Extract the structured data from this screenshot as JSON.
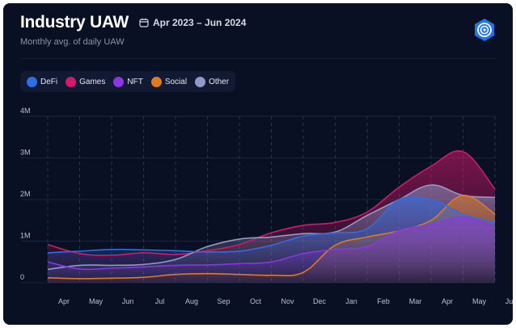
{
  "header": {
    "title": "Industry UAW",
    "date_range": "Apr 2023 – Jun 2024",
    "subtitle": "Monthly avg. of daily UAW"
  },
  "icons": {
    "calendar": "calendar-icon",
    "logo": "dappradar-logo-icon"
  },
  "colors": {
    "background": "#0a1024",
    "DeFi": "#2b6ee8",
    "Games": "#d4186c",
    "NFT": "#8b36e0",
    "Social": "#e07a1e",
    "Other": "#8f9bc6"
  },
  "chart_data": {
    "type": "area",
    "title": "Industry UAW",
    "subtitle": "Monthly avg. of daily UAW",
    "categories": [
      "Apr",
      "May",
      "Jun",
      "Jul",
      "Aug",
      "Sep",
      "Oct",
      "Nov",
      "Dec",
      "Jan",
      "Feb",
      "Mar",
      "Apr",
      "May",
      "Jun"
    ],
    "y_ticks": [
      "0",
      "1M",
      "2M",
      "3M",
      "4M"
    ],
    "ylim": [
      0,
      4000000
    ],
    "grid": true,
    "legend": "top-left",
    "series": [
      {
        "name": "DeFi",
        "values": [
          720000,
          760000,
          800000,
          790000,
          770000,
          740000,
          760000,
          900000,
          1120000,
          1200000,
          1300000,
          2000000,
          2000000,
          1650000,
          1450000
        ]
      },
      {
        "name": "Games",
        "values": [
          920000,
          700000,
          660000,
          720000,
          680000,
          770000,
          920000,
          1200000,
          1380000,
          1450000,
          1700000,
          2300000,
          2800000,
          3150000,
          2250000
        ]
      },
      {
        "name": "NFT",
        "values": [
          500000,
          330000,
          350000,
          380000,
          420000,
          430000,
          460000,
          500000,
          700000,
          800000,
          870000,
          1250000,
          1400000,
          1580000,
          1350000
        ]
      },
      {
        "name": "Social",
        "values": [
          120000,
          100000,
          110000,
          130000,
          200000,
          220000,
          200000,
          180000,
          250000,
          900000,
          1100000,
          1250000,
          1500000,
          2100000,
          1650000
        ]
      },
      {
        "name": "Other",
        "values": [
          320000,
          420000,
          420000,
          440000,
          560000,
          870000,
          1050000,
          1100000,
          1180000,
          1220000,
          1620000,
          2000000,
          2350000,
          2100000,
          2050000
        ]
      }
    ]
  }
}
